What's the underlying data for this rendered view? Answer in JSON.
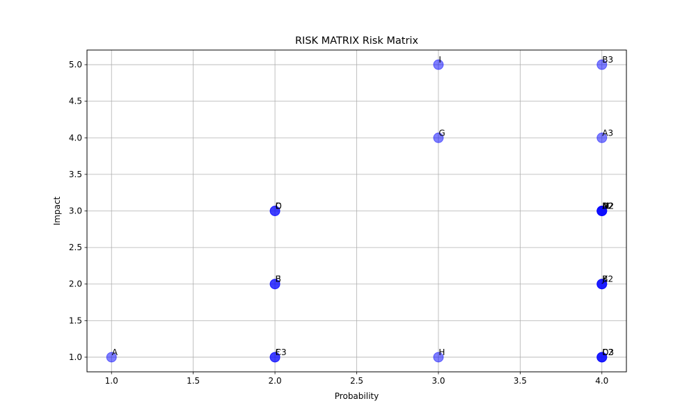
{
  "chart_data": {
    "type": "scatter",
    "title": "RISK MATRIX Risk Matrix",
    "xlabel": "Probability",
    "ylabel": "Impact",
    "xlim": [
      0.85,
      4.15
    ],
    "ylim": [
      0.8,
      5.2
    ],
    "xticks": [
      "1.0",
      "1.5",
      "2.0",
      "2.5",
      "3.0",
      "3.5",
      "4.0"
    ],
    "yticks": [
      "1.0",
      "1.5",
      "2.0",
      "2.5",
      "3.0",
      "3.5",
      "4.0",
      "4.5",
      "5.0"
    ],
    "grid": true,
    "marker_color": "#0000ff",
    "marker_alpha": 0.5,
    "points": [
      {
        "label": "A",
        "x": 1,
        "y": 1
      },
      {
        "label": "B",
        "x": 2,
        "y": 2
      },
      {
        "label": "C",
        "x": 2,
        "y": 3
      },
      {
        "label": "D",
        "x": 2,
        "y": 3
      },
      {
        "label": "E",
        "x": 2,
        "y": 2
      },
      {
        "label": "F",
        "x": 2,
        "y": 1
      },
      {
        "label": "G",
        "x": 3,
        "y": 4
      },
      {
        "label": "H",
        "x": 3,
        "y": 1
      },
      {
        "label": "I",
        "x": 3,
        "y": 5
      },
      {
        "label": "J",
        "x": 4,
        "y": 2
      },
      {
        "label": "K",
        "x": 4,
        "y": 2
      },
      {
        "label": "L",
        "x": 4,
        "y": 1
      },
      {
        "label": "M",
        "x": 4,
        "y": 3
      },
      {
        "label": "N",
        "x": 4,
        "y": 3
      },
      {
        "label": "A2",
        "x": 4,
        "y": 3
      },
      {
        "label": "B2",
        "x": 4,
        "y": 2
      },
      {
        "label": "C2",
        "x": 4,
        "y": 1
      },
      {
        "label": "D2",
        "x": 4,
        "y": 3
      },
      {
        "label": "A3",
        "x": 4,
        "y": 4
      },
      {
        "label": "B3",
        "x": 4,
        "y": 5
      },
      {
        "label": "C3",
        "x": 2,
        "y": 1
      },
      {
        "label": "D3",
        "x": 4,
        "y": 1
      }
    ]
  }
}
